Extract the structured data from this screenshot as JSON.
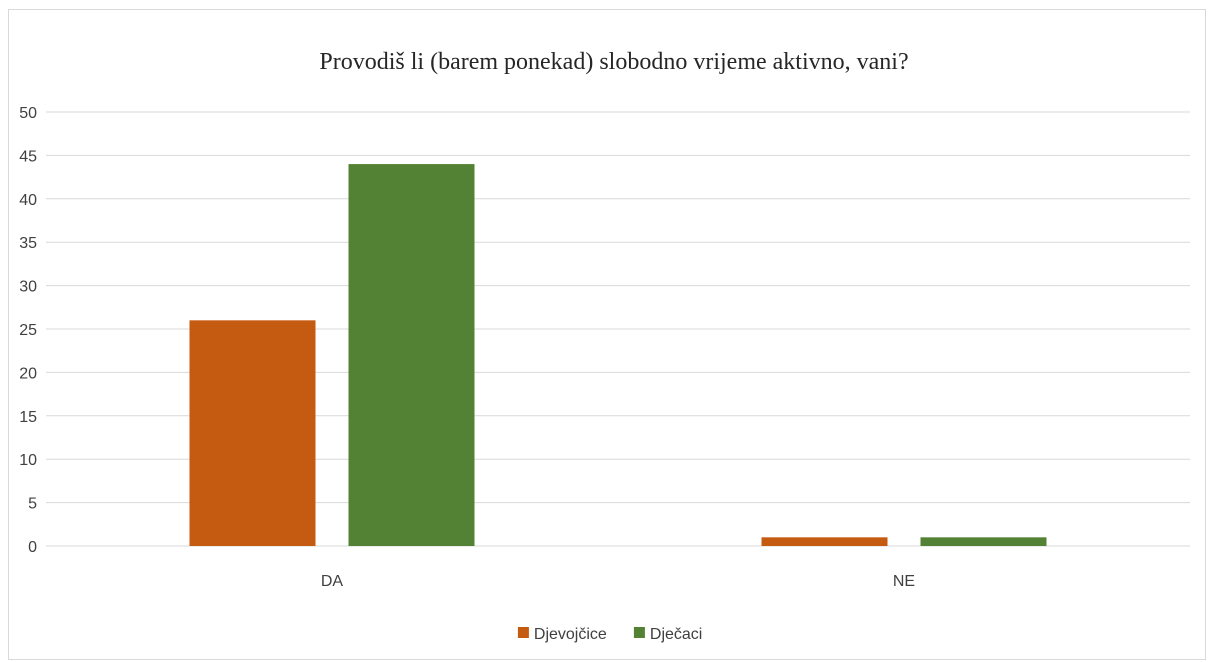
{
  "chart_data": {
    "type": "bar",
    "title": "Provodiš li (barem ponekad) slobodno vrijeme aktivno, vani?",
    "xlabel": "",
    "ylabel": "",
    "categories": [
      "DA",
      "NE"
    ],
    "series": [
      {
        "name": "Djevojčice",
        "values": [
          26,
          1
        ],
        "color": "#c55a11"
      },
      {
        "name": "Dječaci",
        "values": [
          44,
          1
        ],
        "color": "#548235"
      }
    ],
    "ylim": [
      0,
      50
    ],
    "yticks": [
      0,
      5,
      10,
      15,
      20,
      25,
      30,
      35,
      40,
      45,
      50
    ],
    "grid": true,
    "gridline_color": "#d9d9d9",
    "legend_position": "bottom"
  }
}
